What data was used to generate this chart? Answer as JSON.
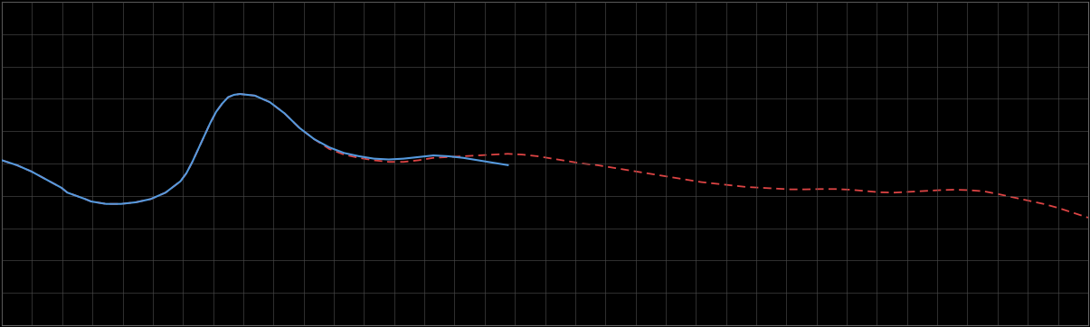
{
  "background_color": "#000000",
  "plot_bg_color": "#000000",
  "grid_color": "#4a4a4a",
  "blue_line_color": "#5599dd",
  "red_line_color": "#dd4444",
  "figsize": [
    12.05,
    3.62
  ],
  "dpi": 100,
  "spine_color": "#666666",
  "xlim": [
    0,
    365
  ],
  "ylim": [
    -5,
    15
  ],
  "blue_t": [
    0,
    5,
    10,
    15,
    20,
    22,
    25,
    28,
    30,
    35,
    40,
    45,
    50,
    55,
    60,
    62,
    64,
    66,
    68,
    70,
    72,
    74,
    76,
    78,
    80,
    85,
    90,
    95,
    100,
    105,
    110,
    115,
    120,
    125,
    130,
    135,
    140,
    145,
    150,
    155,
    160,
    165,
    170
  ],
  "blue_v": [
    5.2,
    4.9,
    4.5,
    4.0,
    3.5,
    3.2,
    3.0,
    2.8,
    2.65,
    2.5,
    2.5,
    2.6,
    2.8,
    3.2,
    3.9,
    4.4,
    5.1,
    5.9,
    6.7,
    7.5,
    8.2,
    8.7,
    9.1,
    9.25,
    9.3,
    9.2,
    8.8,
    8.1,
    7.2,
    6.5,
    6.0,
    5.65,
    5.45,
    5.3,
    5.25,
    5.3,
    5.4,
    5.5,
    5.45,
    5.35,
    5.2,
    5.05,
    4.9
  ],
  "red_t": [
    0,
    5,
    10,
    15,
    20,
    22,
    25,
    28,
    30,
    35,
    40,
    45,
    50,
    55,
    60,
    62,
    64,
    66,
    68,
    70,
    72,
    74,
    76,
    78,
    80,
    85,
    90,
    95,
    100,
    105,
    110,
    115,
    120,
    125,
    130,
    135,
    140,
    145,
    150,
    155,
    160,
    165,
    170,
    175,
    180,
    185,
    190,
    195,
    200,
    205,
    210,
    215,
    220,
    225,
    230,
    235,
    240,
    245,
    250,
    255,
    260,
    265,
    270,
    275,
    280,
    285,
    290,
    295,
    300,
    305,
    310,
    315,
    320,
    325,
    330,
    335,
    340,
    345,
    350,
    355,
    360,
    365
  ],
  "red_v": [
    5.2,
    4.9,
    4.5,
    4.0,
    3.5,
    3.2,
    3.0,
    2.8,
    2.65,
    2.5,
    2.5,
    2.6,
    2.8,
    3.2,
    3.9,
    4.4,
    5.1,
    5.9,
    6.7,
    7.5,
    8.2,
    8.7,
    9.1,
    9.25,
    9.3,
    9.2,
    8.8,
    8.1,
    7.2,
    6.5,
    5.9,
    5.55,
    5.35,
    5.2,
    5.1,
    5.1,
    5.2,
    5.35,
    5.4,
    5.45,
    5.5,
    5.55,
    5.6,
    5.55,
    5.45,
    5.3,
    5.15,
    5.0,
    4.9,
    4.75,
    4.6,
    4.45,
    4.3,
    4.15,
    4.0,
    3.85,
    3.75,
    3.65,
    3.55,
    3.5,
    3.45,
    3.4,
    3.4,
    3.42,
    3.42,
    3.38,
    3.3,
    3.22,
    3.2,
    3.25,
    3.3,
    3.35,
    3.38,
    3.35,
    3.28,
    3.1,
    2.9,
    2.7,
    2.5,
    2.25,
    1.95,
    1.65
  ]
}
